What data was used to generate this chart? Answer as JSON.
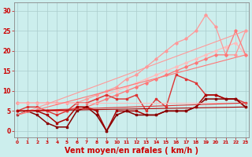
{
  "bg_color": "#cceeed",
  "grid_color": "#aacccc",
  "xlabel": "Vent moyen/en rafales ( km/h )",
  "xlabel_color": "#cc0000",
  "xlabel_fontsize": 7,
  "ytick_color": "#cc0000",
  "xtick_color": "#cc0000",
  "yticks": [
    0,
    5,
    10,
    15,
    20,
    25,
    30
  ],
  "xticks": [
    0,
    1,
    2,
    3,
    4,
    5,
    6,
    7,
    8,
    9,
    10,
    11,
    12,
    13,
    14,
    15,
    16,
    17,
    18,
    19,
    20,
    21,
    22,
    23
  ],
  "xlim": [
    -0.3,
    23.3
  ],
  "ylim": [
    -1.5,
    32
  ],
  "lines": [
    {
      "x": [
        0,
        1,
        2,
        3,
        4,
        5,
        6,
        7,
        8,
        9,
        10,
        11,
        12,
        13,
        14,
        15,
        16,
        17,
        18,
        19,
        20,
        21,
        22,
        23
      ],
      "y": [
        7,
        7,
        7,
        7,
        7,
        7,
        7,
        7,
        8,
        9,
        10,
        11,
        12,
        13,
        14,
        15,
        16,
        17,
        18,
        19,
        20,
        21,
        22,
        19
      ],
      "color": "#ffbbbb",
      "lw": 0.9,
      "marker": "D",
      "ms": 1.8
    },
    {
      "x": [
        0,
        1,
        2,
        3,
        4,
        5,
        6,
        7,
        8,
        9,
        10,
        11,
        12,
        13,
        14,
        15,
        16,
        17,
        18,
        19,
        20,
        21,
        22,
        23
      ],
      "y": [
        7,
        7,
        7,
        7,
        7,
        7,
        7,
        8,
        9,
        10,
        11,
        13,
        14,
        16,
        18,
        20,
        22,
        23,
        25,
        29,
        26,
        19,
        19,
        25
      ],
      "color": "#ff9999",
      "lw": 0.9,
      "marker": "D",
      "ms": 1.8
    },
    {
      "x": [
        0,
        1,
        2,
        3,
        4,
        5,
        6,
        7,
        8,
        9,
        10,
        11,
        12,
        13,
        14,
        15,
        16,
        17,
        18,
        19,
        20,
        21,
        22,
        23
      ],
      "y": [
        5,
        5,
        5,
        5,
        5,
        5,
        6,
        6,
        7,
        8,
        9,
        10,
        11,
        12,
        13,
        14,
        15,
        16,
        17,
        18,
        19,
        19,
        25,
        19
      ],
      "color": "#ff7777",
      "lw": 0.9,
      "marker": "D",
      "ms": 1.8
    },
    {
      "x": [
        0,
        1,
        2,
        3,
        4,
        5,
        6,
        7,
        8,
        9,
        10,
        11,
        12,
        13,
        14,
        15,
        16,
        17,
        18,
        19,
        20,
        21,
        22,
        23
      ],
      "y": [
        5,
        6,
        6,
        5,
        4,
        5,
        7,
        7,
        8,
        9,
        8,
        8,
        9,
        5,
        8,
        6,
        14,
        13,
        12,
        9,
        9,
        8,
        8,
        7
      ],
      "color": "#dd3333",
      "lw": 1.0,
      "marker": "s",
      "ms": 1.8
    },
    {
      "x": [
        0,
        1,
        2,
        3,
        4,
        5,
        6,
        7,
        8,
        9,
        10,
        11,
        12,
        13,
        14,
        15,
        16,
        17,
        18,
        19,
        20,
        21,
        22,
        23
      ],
      "y": [
        5,
        5,
        5,
        4,
        2,
        3,
        6,
        6,
        5,
        0,
        5,
        5,
        5,
        4,
        4,
        5,
        5,
        5,
        6,
        9,
        9,
        8,
        8,
        6
      ],
      "color": "#aa0000",
      "lw": 1.1,
      "marker": "s",
      "ms": 1.8
    },
    {
      "x": [
        0,
        1,
        2,
        3,
        4,
        5,
        6,
        7,
        8,
        9,
        10,
        11,
        12,
        13,
        14,
        15,
        16,
        17,
        18,
        19,
        20,
        21,
        22,
        23
      ],
      "y": [
        4,
        5,
        4,
        2,
        1,
        1,
        5,
        6,
        4,
        0,
        4,
        5,
        4,
        4,
        4,
        5,
        5,
        5,
        6,
        8,
        8,
        8,
        8,
        6
      ],
      "color": "#880000",
      "lw": 1.1,
      "marker": "s",
      "ms": 1.8
    },
    {
      "x": [
        0,
        23
      ],
      "y": [
        7,
        7
      ],
      "color": "#ffbbbb",
      "lw": 0.8,
      "marker": null,
      "ms": 0
    },
    {
      "x": [
        0,
        23
      ],
      "y": [
        4,
        25
      ],
      "color": "#ff9999",
      "lw": 0.8,
      "marker": null,
      "ms": 0
    },
    {
      "x": [
        0,
        23
      ],
      "y": [
        4,
        19
      ],
      "color": "#ff7777",
      "lw": 0.8,
      "marker": null,
      "ms": 0
    },
    {
      "x": [
        0,
        23
      ],
      "y": [
        5,
        7
      ],
      "color": "#dd3333",
      "lw": 0.8,
      "marker": null,
      "ms": 0
    },
    {
      "x": [
        0,
        23
      ],
      "y": [
        5,
        6
      ],
      "color": "#aa0000",
      "lw": 0.8,
      "marker": null,
      "ms": 0
    }
  ]
}
